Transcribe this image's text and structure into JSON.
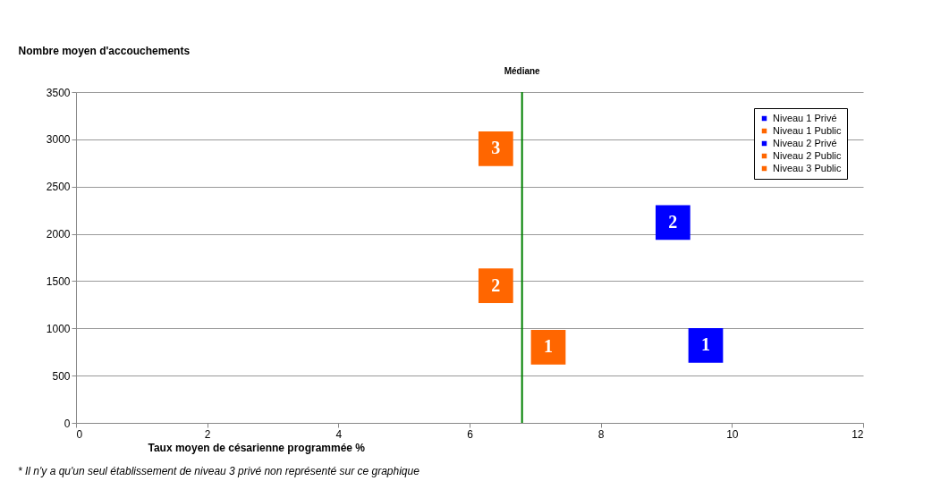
{
  "chart_data": {
    "type": "scatter",
    "xlabel": "Taux moyen de césarienne programmée %",
    "ylabel": "Nombre moyen d'accouchements",
    "xlim": [
      0,
      12
    ],
    "xticks": [
      0,
      2,
      4,
      6,
      8,
      10,
      12
    ],
    "ylim": [
      0,
      3500
    ],
    "yticks": [
      0,
      500,
      1000,
      1500,
      2000,
      2500,
      3000,
      3500
    ],
    "grid": "y",
    "legend": "top right",
    "marker": "square",
    "series": [
      {
        "name": "Niveau 1 Privé",
        "color": "#0000ff",
        "x": [
          9.6
        ],
        "values": [
          820
        ]
      },
      {
        "name": "Niveau 1 Public",
        "color": "#ff6600",
        "x": [
          7.2
        ],
        "values": [
          800
        ]
      },
      {
        "name": "Niveau 2 Privé",
        "color": "#0000ff",
        "x": [
          9.1
        ],
        "values": [
          2120
        ]
      },
      {
        "name": "Niveau 2 Public",
        "color": "#ff6600",
        "x": [
          6.4
        ],
        "values": [
          1450
        ]
      },
      {
        "name": "Niveau 3 Public",
        "color": "#ff6600",
        "x": [
          6.4
        ],
        "values": [
          2900
        ]
      }
    ],
    "ref_lines": [
      {
        "axis": "x",
        "value": 6.8,
        "label": "Médiane",
        "color": "#008000"
      }
    ],
    "annotations": [
      {
        "text": "1",
        "x": 9.6,
        "y": 820
      },
      {
        "text": "1",
        "x": 7.2,
        "y": 800
      },
      {
        "text": "2",
        "x": 9.1,
        "y": 2120
      },
      {
        "text": "2",
        "x": 6.4,
        "y": 1450
      },
      {
        "text": "3",
        "x": 6.4,
        "y": 2900
      },
      "* Il n'y a qu'un seul établissement de niveau 3 privé non représenté sur ce graphique"
    ]
  }
}
